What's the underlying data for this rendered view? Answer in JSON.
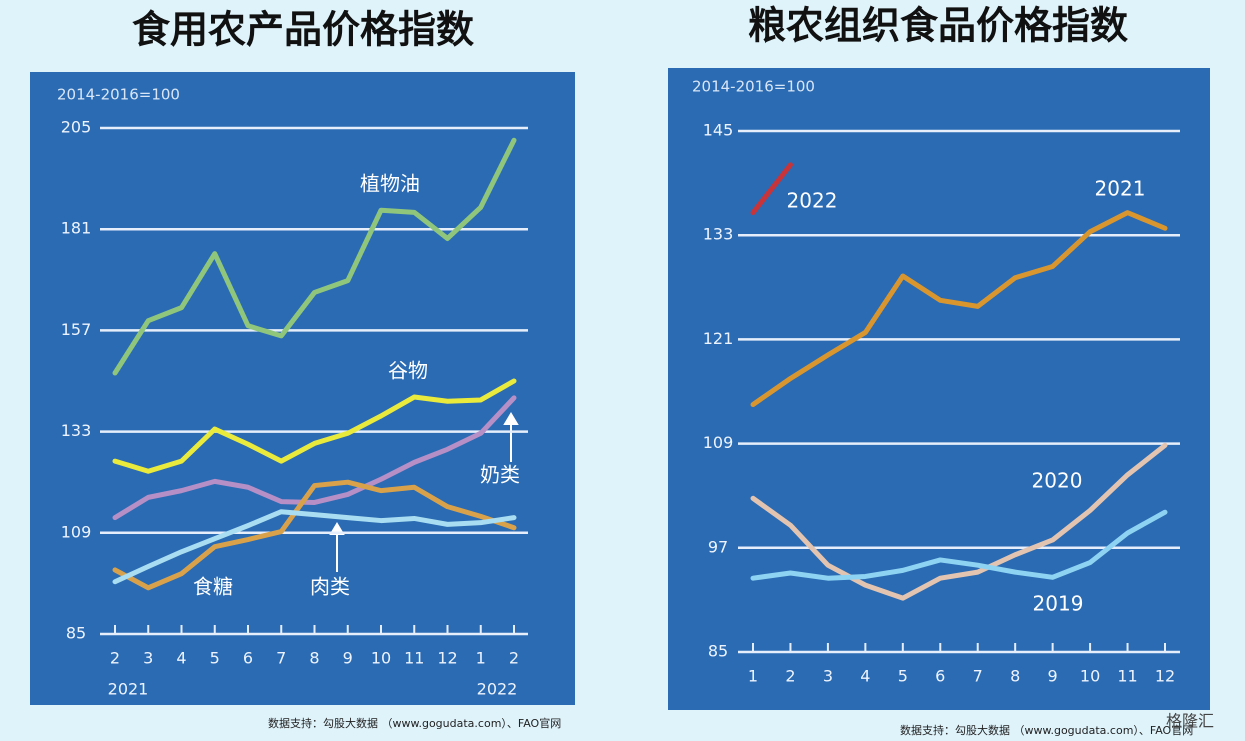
{
  "chart_data": [
    {
      "type": "line",
      "title": "食用农产品价格指数",
      "note": "2014-2016=100",
      "categories": [
        "2",
        "3",
        "4",
        "5",
        "6",
        "7",
        "8",
        "9",
        "10",
        "11",
        "12",
        "1",
        "2"
      ],
      "x_year_labels": [
        "2021",
        "2022"
      ],
      "ylim": [
        85,
        205
      ],
      "yticks": [
        85,
        109,
        133,
        157,
        181,
        205
      ],
      "grid": true,
      "series": [
        {
          "name": "植物油",
          "color": "#8fc67c",
          "values": [
            146.9,
            159.3,
            162.4,
            175.2,
            158.1,
            155.7,
            166,
            168.8,
            185.5,
            185,
            178.8,
            186.2,
            202.1
          ]
        },
        {
          "name": "谷物",
          "color": "#e9ea3c",
          "values": [
            126,
            123.6,
            126,
            133.6,
            130,
            126,
            130.2,
            132.6,
            136.7,
            141.2,
            140.2,
            140.5,
            145
          ]
        },
        {
          "name": "奶类",
          "color": "#b58fc6",
          "values": [
            112.6,
            117.4,
            119,
            121.2,
            119.8,
            116.4,
            116.2,
            118.1,
            121.7,
            125.7,
            128.8,
            132.6,
            141
          ]
        },
        {
          "name": "肉类",
          "color": "#d9a24a",
          "values": [
            100.2,
            95.95,
            99.3,
            105.7,
            107.4,
            109.3,
            120.2,
            121,
            119,
            119.8,
            115.2,
            112.9,
            110.2
          ]
        },
        {
          "name": "食糖",
          "color": "#a9ddf1",
          "values": [
            97.4,
            101,
            104.5,
            107.6,
            110.7,
            114,
            113.3,
            112.6,
            111.9,
            112.4,
            111,
            111.4,
            112.6
          ]
        }
      ],
      "footnote": "数据支持：勾股大数据 （www.gogudata.com）、FAO官网"
    },
    {
      "type": "line",
      "title": "粮农组织食品价格指数",
      "note": "2014-2016=100",
      "categories": [
        "1",
        "2",
        "3",
        "4",
        "5",
        "6",
        "7",
        "8",
        "9",
        "10",
        "11",
        "12"
      ],
      "ylim": [
        85,
        145
      ],
      "yticks": [
        85,
        97,
        109,
        121,
        133,
        145
      ],
      "grid": true,
      "series": [
        {
          "name": "2022",
          "color": "#c7343a",
          "values": [
            135.6,
            141.1,
            null,
            null,
            null,
            null,
            null,
            null,
            null,
            null,
            null,
            null
          ]
        },
        {
          "name": "2021",
          "color": "#d9962f",
          "values": [
            113.5,
            116.5,
            119.2,
            121.8,
            128.3,
            125.5,
            124.8,
            128.1,
            129.4,
            133.4,
            135.6,
            133.8
          ]
        },
        {
          "name": "2020",
          "color": "#e3c4b0",
          "values": [
            102.7,
            99.6,
            95,
            92.7,
            91.2,
            93.5,
            94.2,
            96.2,
            97.9,
            101.3,
            105.4,
            108.8
          ]
        },
        {
          "name": "2019",
          "color": "#8fd3f2",
          "values": [
            93.5,
            94.1,
            93.5,
            93.7,
            94.4,
            95.6,
            95,
            94.2,
            93.6,
            95.3,
            98.7,
            101.1
          ]
        }
      ],
      "footnote": "数据支持：勾股大数据 （www.gogudata.com）、FAO官网"
    }
  ],
  "logo": "格隆汇"
}
